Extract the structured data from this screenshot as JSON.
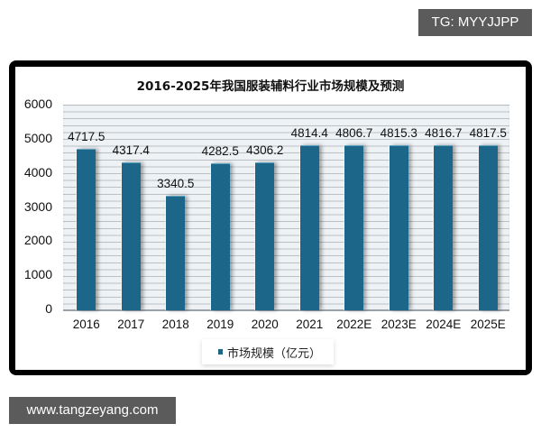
{
  "watermarks": {
    "top_right": "TG: MYYJJPP",
    "bottom_left": "www.tangzeyang.com"
  },
  "colors": {
    "bar": "#1c6689",
    "badge_bg": "#5b5b5b",
    "frame": "#000000",
    "plot_bg": "#eef2f5"
  },
  "chart_data": {
    "type": "bar",
    "title": "2016-2025年我国服装辅料行业市场规模及预测",
    "categories": [
      "2016",
      "2017",
      "2018",
      "2019",
      "2020",
      "2021",
      "2022E",
      "2023E",
      "2024E",
      "2025E"
    ],
    "series": [
      {
        "name": "市场规模（亿元）",
        "values": [
          4717.5,
          4317.4,
          3340.5,
          4282.5,
          4306.2,
          4814.4,
          4806.7,
          4815.3,
          4816.7,
          4817.5
        ]
      }
    ],
    "data_labels": [
      "4717.5",
      "4317.4",
      "3340.5",
      "4282.5",
      "4306.2",
      "4814.4",
      "4806.7",
      "4815.3",
      "4816.7",
      "4817.5"
    ],
    "xlabel": "",
    "ylabel": "",
    "ylim": [
      0,
      6000
    ],
    "yticks": [
      "0",
      "1000",
      "2000",
      "3000",
      "4000",
      "5000",
      "6000"
    ],
    "grid": true,
    "legend_position": "bottom"
  }
}
